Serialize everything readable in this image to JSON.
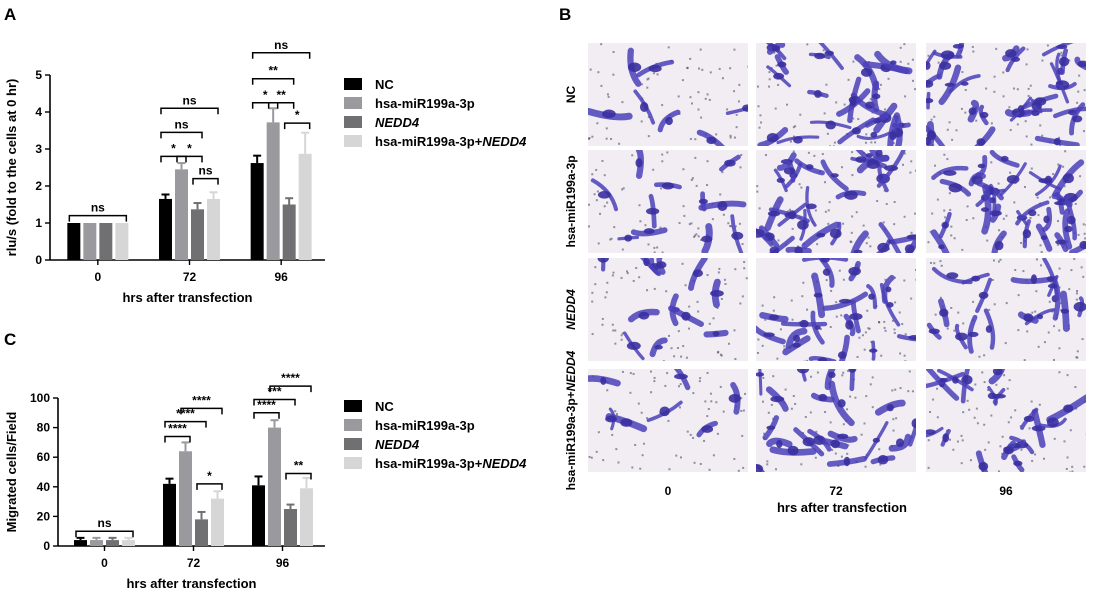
{
  "panels": {
    "A": "A",
    "B": "B",
    "C": "C"
  },
  "colors": [
    "#000000",
    "#9a9a9e",
    "#707072",
    "#d6d6d6"
  ],
  "chart_data": [
    {
      "id": "A",
      "type": "bar",
      "title": "",
      "xlabel": "hrs after transfection",
      "ylabel": "rlu/s (fold to the cells at 0 hr)",
      "ylim": [
        0,
        5
      ],
      "yticks": [
        "0",
        "1",
        "2",
        "3",
        "4",
        "5"
      ],
      "categories": [
        "0",
        "72",
        "96"
      ],
      "series": [
        {
          "name": "NC",
          "italic_part": "",
          "values": [
            1.0,
            1.65,
            2.62
          ],
          "errors": [
            0,
            0.12,
            0.2
          ]
        },
        {
          "name": "hsa-miR199a-3p",
          "italic_part": "",
          "values": [
            1.0,
            2.45,
            3.72
          ],
          "errors": [
            0,
            0.17,
            0.38
          ]
        },
        {
          "name": "",
          "italic_part": "NEDD4",
          "values": [
            1.0,
            1.37,
            1.5
          ],
          "errors": [
            0,
            0.17,
            0.17
          ]
        },
        {
          "name": "hsa-miR199a-3p+",
          "italic_part": "NEDD4",
          "values": [
            1.0,
            1.65,
            2.87
          ],
          "errors": [
            0,
            0.18,
            0.57
          ]
        }
      ],
      "annotations": [
        {
          "text": "ns",
          "group": 0,
          "from": 0,
          "to": 3,
          "y": 1.2
        },
        {
          "text": "*",
          "group": 1,
          "from": 0,
          "to": 1,
          "y": 2.8
        },
        {
          "text": "*",
          "group": 1,
          "from": 1,
          "to": 2,
          "y": 2.8
        },
        {
          "text": "ns",
          "group": 1,
          "from": 2,
          "to": 3,
          "y": 2.2
        },
        {
          "text": "ns",
          "group": 1,
          "from": 0,
          "to": 2,
          "y": 3.45
        },
        {
          "text": "ns",
          "group": 1,
          "from": 0,
          "to": 3,
          "y": 4.1
        },
        {
          "text": "*",
          "group": 2,
          "from": 0,
          "to": 1,
          "y": 4.25
        },
        {
          "text": "**",
          "group": 2,
          "from": 1,
          "to": 2,
          "y": 4.25
        },
        {
          "text": "*",
          "group": 2,
          "from": 2,
          "to": 3,
          "y": 3.7
        },
        {
          "text": "**",
          "group": 2,
          "from": 0,
          "to": 2,
          "y": 4.9
        },
        {
          "text": "ns",
          "group": 2,
          "from": 0,
          "to": 3,
          "y": 5.6
        }
      ]
    },
    {
      "id": "C",
      "type": "bar",
      "title": "",
      "xlabel": "hrs after transfection",
      "ylabel": "Migrated cells/Field",
      "ylim": [
        0,
        100
      ],
      "yticks": [
        "0",
        "20",
        "40",
        "60",
        "80",
        "100"
      ],
      "categories": [
        "0",
        "72",
        "96"
      ],
      "series": [
        {
          "name": "NC",
          "italic_part": "",
          "values": [
            4,
            42,
            41
          ],
          "errors": [
            1.5,
            3.5,
            6
          ]
        },
        {
          "name": "hsa-miR199a-3p",
          "italic_part": "",
          "values": [
            4,
            64,
            80
          ],
          "errors": [
            1.5,
            6,
            5
          ]
        },
        {
          "name": "",
          "italic_part": "NEDD4",
          "values": [
            4,
            18,
            25
          ],
          "errors": [
            1.5,
            5,
            3
          ]
        },
        {
          "name": "hsa-miR199a-3p+",
          "italic_part": "NEDD4",
          "values": [
            4,
            32,
            39
          ],
          "errors": [
            1.5,
            5,
            7
          ]
        }
      ],
      "annotations": [
        {
          "text": "ns",
          "group": 0,
          "from": 0,
          "to": 3,
          "y": 10
        },
        {
          "text": "****",
          "group": 1,
          "from": 0,
          "to": 1,
          "y": 74
        },
        {
          "text": "****",
          "group": 1,
          "from": 0,
          "to": 2,
          "y": 84
        },
        {
          "text": "****",
          "group": 1,
          "from": 1,
          "to": 3,
          "y": 93
        },
        {
          "text": "*",
          "group": 1,
          "from": 2,
          "to": 3,
          "y": 42
        },
        {
          "text": "****",
          "group": 2,
          "from": 0,
          "to": 1,
          "y": 90
        },
        {
          "text": "***",
          "group": 2,
          "from": 0,
          "to": 2,
          "y": 99
        },
        {
          "text": "****",
          "group": 2,
          "from": 1,
          "to": 3,
          "y": 108
        },
        {
          "text": "**",
          "group": 2,
          "from": 2,
          "to": 3,
          "y": 49
        }
      ]
    }
  ],
  "micrographs": {
    "rows": [
      {
        "name": "NC",
        "italic_part": ""
      },
      {
        "name": "hsa-miR199a-3p",
        "italic_part": ""
      },
      {
        "name": "",
        "italic_part": "NEDD4"
      },
      {
        "name": "hsa-miR199a-3p+",
        "italic_part": "NEDD4"
      }
    ],
    "columns": [
      "0",
      "72",
      "96"
    ],
    "xlabel": "hrs after transfection",
    "density": [
      [
        0.12,
        0.75,
        0.95
      ],
      [
        0.25,
        0.95,
        1.0
      ],
      [
        0.3,
        0.6,
        0.45
      ],
      [
        0.12,
        0.65,
        0.55
      ]
    ],
    "stain_color": "#4a3fb8",
    "background_color": "#f1edf3"
  }
}
